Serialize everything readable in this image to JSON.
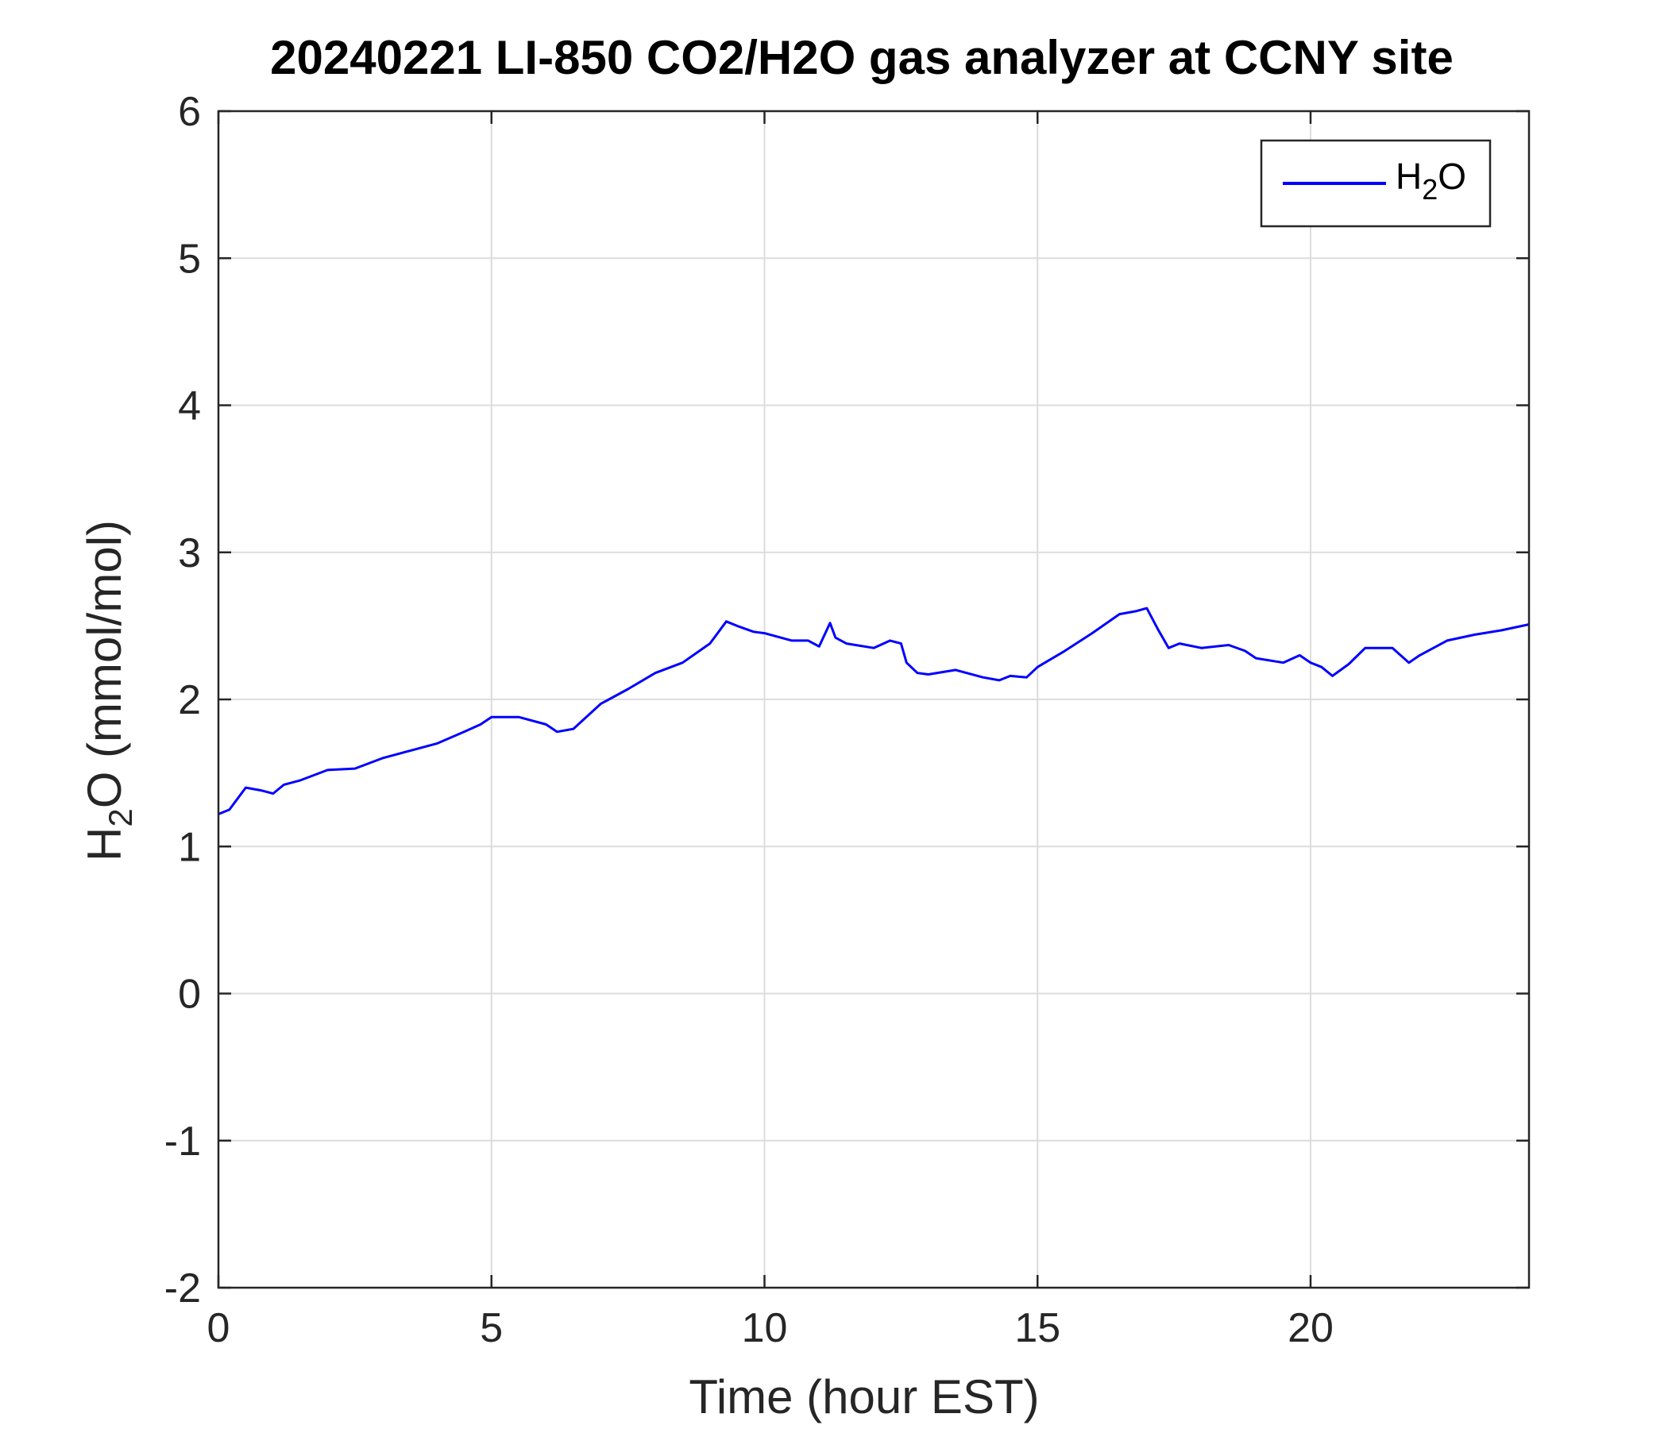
{
  "chart_data": {
    "type": "line",
    "title": "20240221 LI-850 CO2/H2O gas analyzer at CCNY site",
    "xlabel": "Time (hour EST)",
    "ylabel": {
      "base": "H",
      "sub": "2",
      "rest": "O (mmol/mol)"
    },
    "xlim": [
      0,
      24
    ],
    "ylim": [
      -2,
      6
    ],
    "xticks": [
      0,
      5,
      10,
      15,
      20
    ],
    "yticks": [
      -2,
      -1,
      0,
      1,
      2,
      3,
      4,
      5,
      6
    ],
    "grid": true,
    "legend_position": "top-right",
    "series": [
      {
        "name": {
          "base": "H",
          "sub": "2",
          "rest": "O"
        },
        "color": "#0000ff",
        "x": [
          0,
          0.2,
          0.3,
          0.5,
          0.8,
          1.0,
          1.2,
          1.5,
          2.0,
          2.5,
          3.0,
          3.5,
          4.0,
          4.5,
          4.8,
          5.0,
          5.5,
          6.0,
          6.2,
          6.5,
          7.0,
          7.5,
          8.0,
          8.5,
          9.0,
          9.3,
          9.5,
          9.8,
          10.0,
          10.5,
          10.8,
          11.0,
          11.2,
          11.3,
          11.5,
          12.0,
          12.3,
          12.5,
          12.6,
          12.8,
          13.0,
          13.5,
          14.0,
          14.3,
          14.5,
          14.8,
          15.0,
          15.5,
          16.0,
          16.5,
          16.8,
          17.0,
          17.2,
          17.4,
          17.6,
          18.0,
          18.5,
          18.8,
          19.0,
          19.5,
          19.8,
          20.0,
          20.2,
          20.4,
          20.7,
          21.0,
          21.5,
          21.8,
          22.0,
          22.5,
          23.0,
          23.5,
          24.0
        ],
        "y": [
          1.22,
          1.25,
          1.3,
          1.4,
          1.38,
          1.36,
          1.42,
          1.45,
          1.52,
          1.53,
          1.6,
          1.65,
          1.7,
          1.78,
          1.83,
          1.88,
          1.88,
          1.83,
          1.78,
          1.8,
          1.97,
          2.07,
          2.18,
          2.25,
          2.38,
          2.53,
          2.5,
          2.46,
          2.45,
          2.4,
          2.4,
          2.36,
          2.52,
          2.42,
          2.38,
          2.35,
          2.4,
          2.38,
          2.25,
          2.18,
          2.17,
          2.2,
          2.15,
          2.13,
          2.16,
          2.15,
          2.22,
          2.33,
          2.45,
          2.58,
          2.6,
          2.62,
          2.48,
          2.35,
          2.38,
          2.35,
          2.37,
          2.33,
          2.28,
          2.25,
          2.3,
          2.25,
          2.22,
          2.16,
          2.24,
          2.35,
          2.35,
          2.25,
          2.3,
          2.4,
          2.44,
          2.47,
          2.51
        ]
      }
    ]
  }
}
